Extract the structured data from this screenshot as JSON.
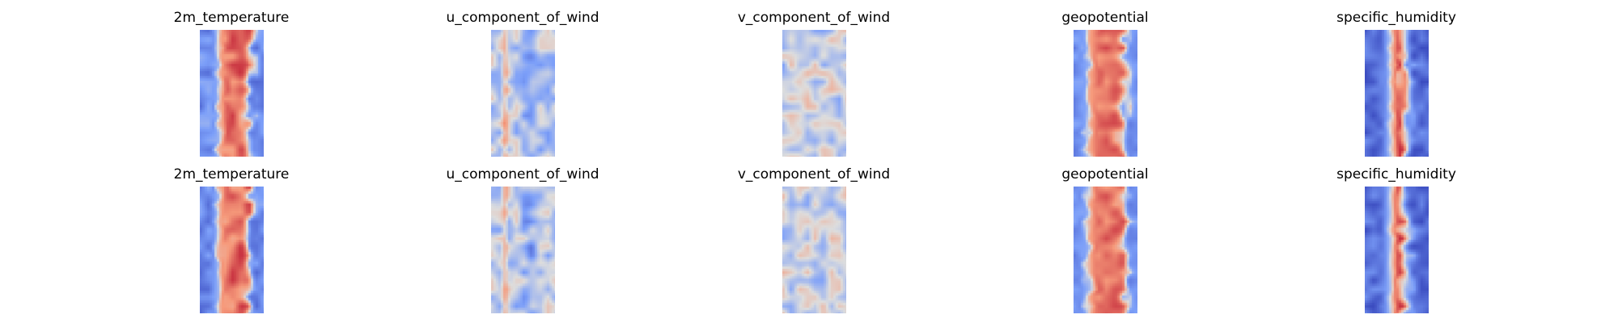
{
  "chart_data": [
    {
      "type": "heatmap",
      "title": "2m_temperature",
      "colormap": "coolwarm",
      "row": 1,
      "column": 1,
      "axes": "off"
    },
    {
      "type": "heatmap",
      "title": "u_component_of_wind",
      "colormap": "coolwarm",
      "row": 1,
      "column": 2,
      "axes": "off"
    },
    {
      "type": "heatmap",
      "title": "v_component_of_wind",
      "colormap": "coolwarm",
      "row": 1,
      "column": 3,
      "axes": "off"
    },
    {
      "type": "heatmap",
      "title": "geopotential",
      "colormap": "coolwarm",
      "row": 1,
      "column": 4,
      "axes": "off"
    },
    {
      "type": "heatmap",
      "title": "specific_humidity",
      "colormap": "coolwarm",
      "row": 1,
      "column": 5,
      "axes": "off"
    },
    {
      "type": "heatmap",
      "title": "2m_temperature",
      "colormap": "coolwarm",
      "row": 2,
      "column": 1,
      "axes": "off"
    },
    {
      "type": "heatmap",
      "title": "u_component_of_wind",
      "colormap": "coolwarm",
      "row": 2,
      "column": 2,
      "axes": "off"
    },
    {
      "type": "heatmap",
      "title": "v_component_of_wind",
      "colormap": "coolwarm",
      "row": 2,
      "column": 3,
      "axes": "off"
    },
    {
      "type": "heatmap",
      "title": "geopotential",
      "colormap": "coolwarm",
      "row": 2,
      "column": 4,
      "axes": "off"
    },
    {
      "type": "heatmap",
      "title": "specific_humidity",
      "colormap": "coolwarm",
      "row": 2,
      "column": 5,
      "axes": "off"
    }
  ]
}
